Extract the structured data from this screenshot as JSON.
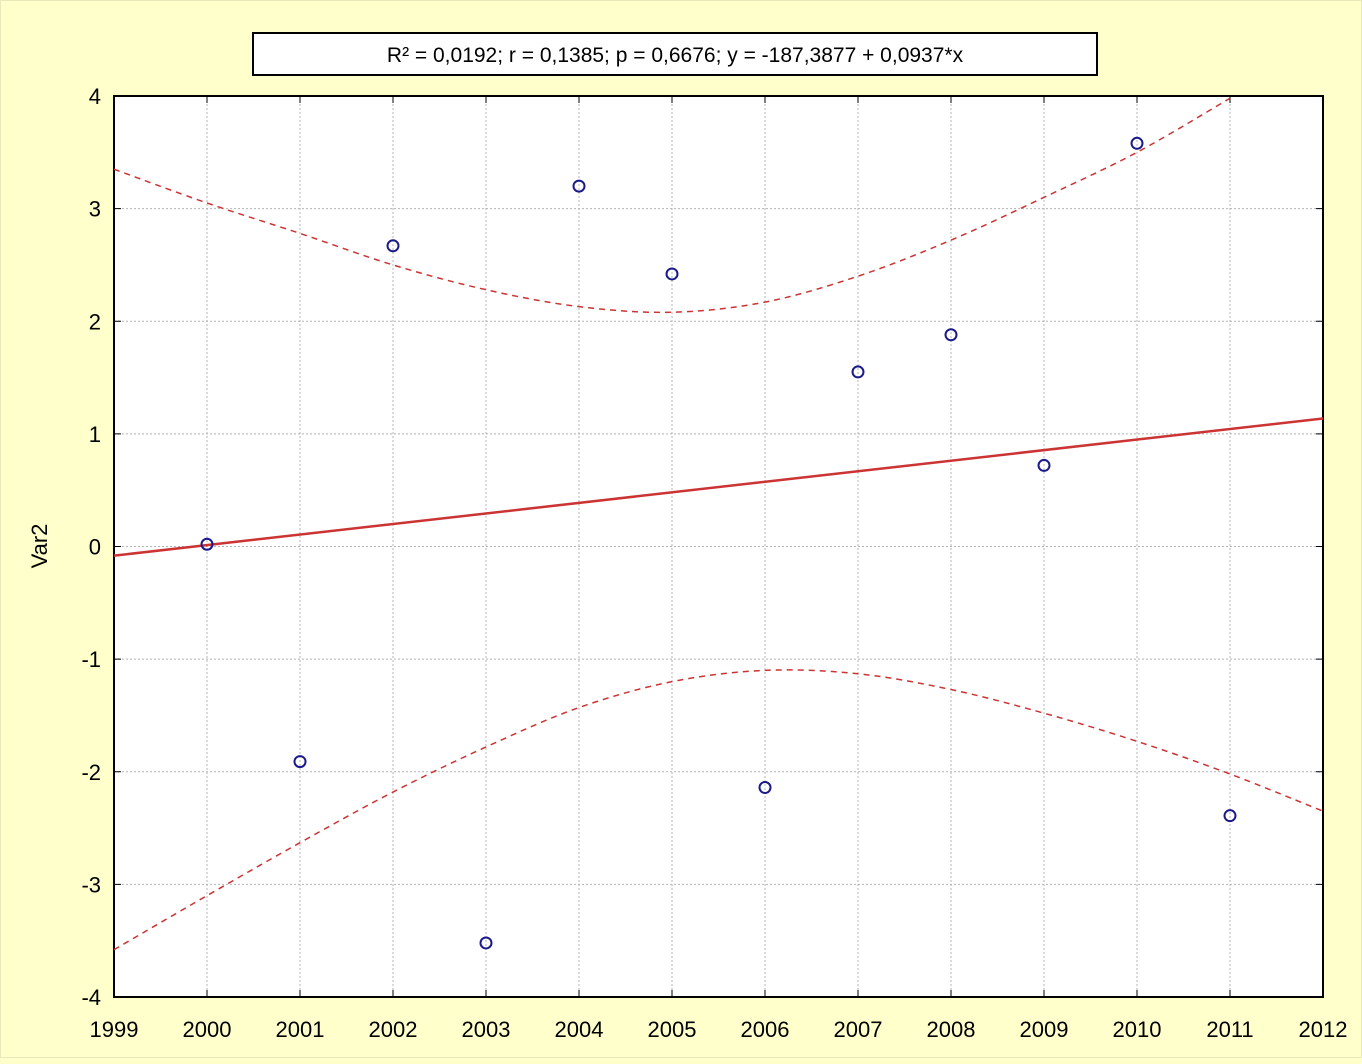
{
  "chart_data": {
    "type": "scatter",
    "title": "R² = 0,0192;  r = 0,1385;  p = 0,6676;  y = -187,3877 + 0,0937*x",
    "xlabel": "",
    "ylabel": "Var2",
    "xlim": [
      1999,
      2012
    ],
    "ylim": [
      -4,
      4
    ],
    "x_ticks": [
      "1999",
      "2000",
      "2001",
      "2002",
      "2003",
      "2004",
      "2005",
      "2006",
      "2007",
      "2008",
      "2009",
      "2010",
      "2011",
      "2012"
    ],
    "y_ticks": [
      "-4",
      "-3",
      "-2",
      "-1",
      "0",
      "1",
      "2",
      "3",
      "4"
    ],
    "grid": true,
    "points": [
      {
        "x": 2000,
        "y": 0.02
      },
      {
        "x": 2001,
        "y": -1.91
      },
      {
        "x": 2002,
        "y": 2.67
      },
      {
        "x": 2003,
        "y": -3.52
      },
      {
        "x": 2004,
        "y": 3.2
      },
      {
        "x": 2005,
        "y": 2.42
      },
      {
        "x": 2006,
        "y": -2.14
      },
      {
        "x": 2007,
        "y": 1.55
      },
      {
        "x": 2008,
        "y": 1.88
      },
      {
        "x": 2009,
        "y": 0.72
      },
      {
        "x": 2010,
        "y": 3.58
      },
      {
        "x": 2011,
        "y": -2.39
      }
    ],
    "regression": {
      "intercept": -187.3877,
      "slope": 0.0937
    },
    "confidence_upper": [
      {
        "x": 1999,
        "y": 3.35
      },
      {
        "x": 2000,
        "y": 3.05
      },
      {
        "x": 2001,
        "y": 2.78
      },
      {
        "x": 2002,
        "y": 2.5
      },
      {
        "x": 2003,
        "y": 2.28
      },
      {
        "x": 2004,
        "y": 2.13
      },
      {
        "x": 2005,
        "y": 2.08
      },
      {
        "x": 2006,
        "y": 2.17
      },
      {
        "x": 2007,
        "y": 2.4
      },
      {
        "x": 2008,
        "y": 2.72
      },
      {
        "x": 2009,
        "y": 3.1
      },
      {
        "x": 2010,
        "y": 3.5
      },
      {
        "x": 2011,
        "y": 3.98
      }
    ],
    "confidence_lower": [
      {
        "x": 1999,
        "y": -3.58
      },
      {
        "x": 2000,
        "y": -3.1
      },
      {
        "x": 2001,
        "y": -2.63
      },
      {
        "x": 2002,
        "y": -2.18
      },
      {
        "x": 2003,
        "y": -1.78
      },
      {
        "x": 2004,
        "y": -1.43
      },
      {
        "x": 2005,
        "y": -1.2
      },
      {
        "x": 2006,
        "y": -1.1
      },
      {
        "x": 2007,
        "y": -1.13
      },
      {
        "x": 2008,
        "y": -1.27
      },
      {
        "x": 2009,
        "y": -1.48
      },
      {
        "x": 2010,
        "y": -1.73
      },
      {
        "x": 2011,
        "y": -2.02
      },
      {
        "x": 2012,
        "y": -2.35
      }
    ],
    "colors": {
      "points": "#1a1a8c",
      "regression": "#cc3333",
      "confidence": "#cc3333",
      "grid": "#b4b4b4",
      "background": "#ffffcc"
    }
  }
}
